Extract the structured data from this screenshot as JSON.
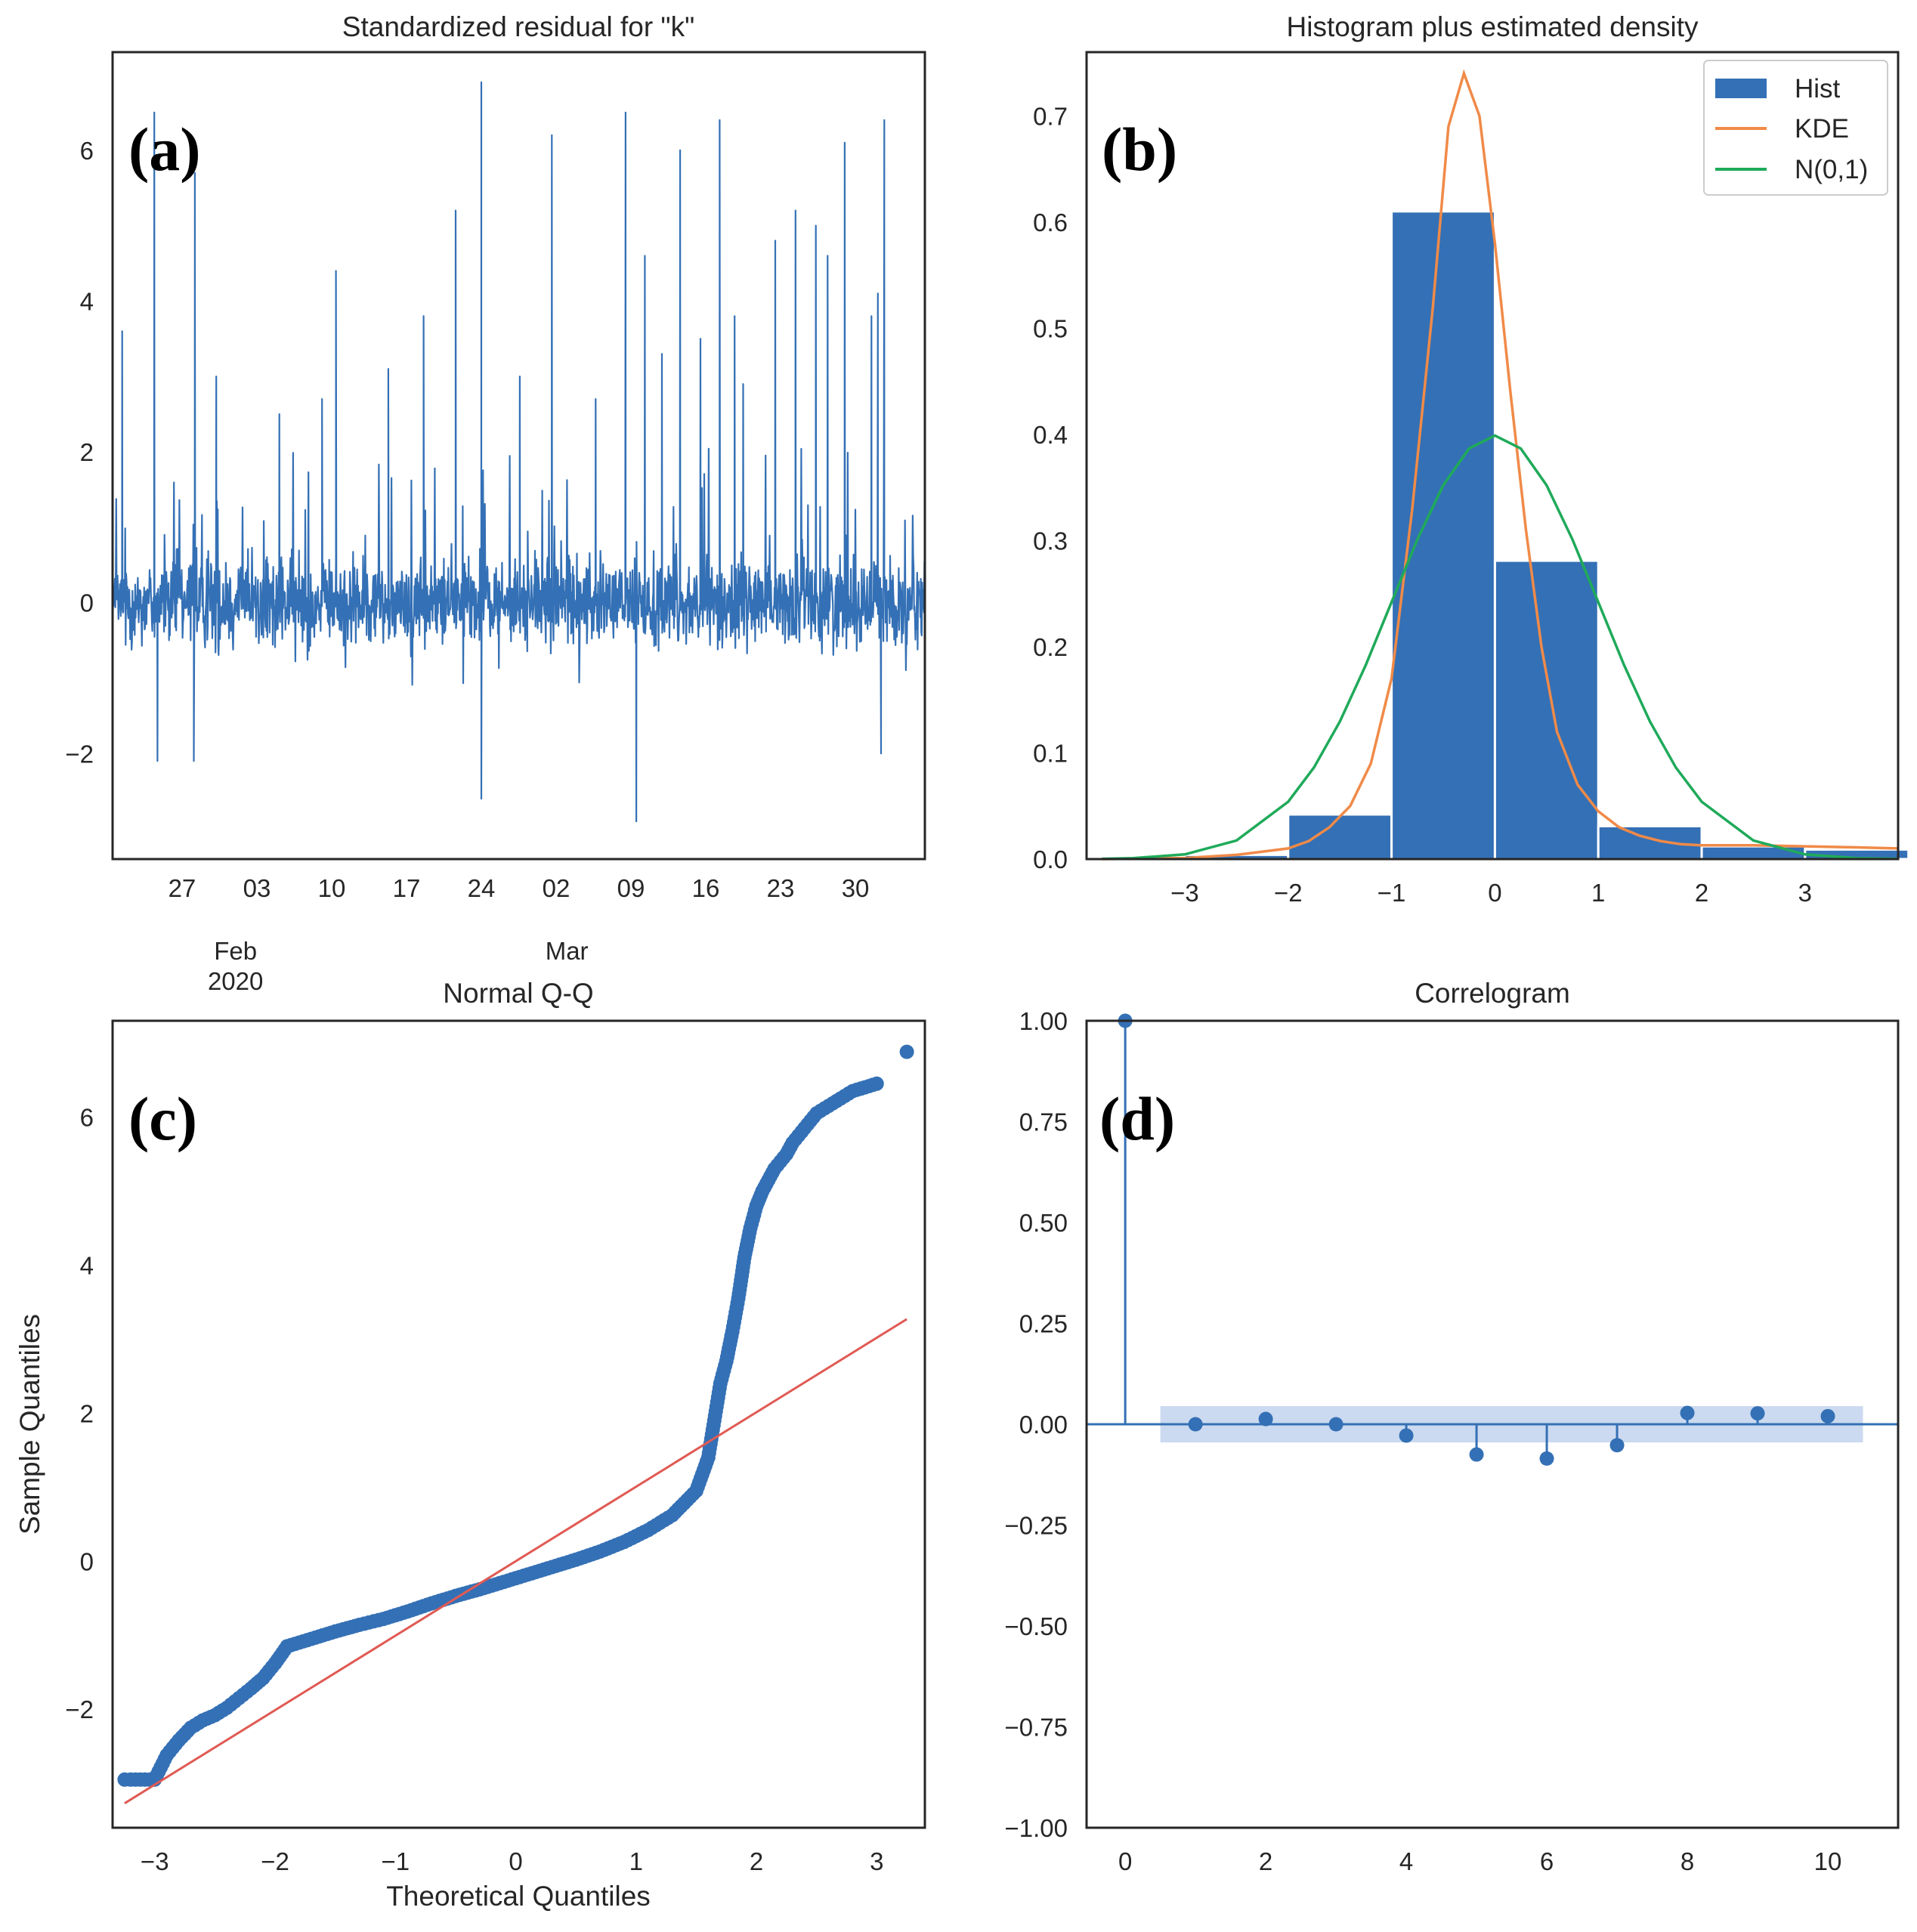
{
  "colors": {
    "series": "#3470b5",
    "kde": "#f08a48",
    "normal": "#1faa5a",
    "qq_line": "#e05a54",
    "band": "#c5d6ee",
    "axis": "#262626"
  },
  "chart_data": [
    {
      "id": "a",
      "type": "line",
      "panel_letter": "(a)",
      "title": "Standardized residual for \"k\"",
      "xlabel": "",
      "ylabel": "",
      "ylim": [
        -3.4,
        7.3
      ],
      "yticks": [
        6,
        4,
        2,
        0,
        -2
      ],
      "yticklabels": [
        "6",
        "4",
        "2",
        "0",
        "−2"
      ],
      "x_range_days": [
        -6.5,
        69.5
      ],
      "xticks": [
        {
          "label": "27",
          "day": 0
        },
        {
          "label": "03",
          "day": 7
        },
        {
          "label": "10",
          "day": 14
        },
        {
          "label": "17",
          "day": 21
        },
        {
          "label": "24",
          "day": 28
        },
        {
          "label": "02",
          "day": 35
        },
        {
          "label": "09",
          "day": 42
        },
        {
          "label": "16",
          "day": 49
        },
        {
          "label": "23",
          "day": 56
        },
        {
          "label": "30",
          "day": 63
        }
      ],
      "month_labels": [
        {
          "text": "Feb",
          "day": 5
        },
        {
          "text": "Mar",
          "day": 36
        },
        {
          "text": "2020",
          "day": 5
        }
      ],
      "spikes": [
        {
          "day": -5.6,
          "value": 3.6
        },
        {
          "day": -2.6,
          "value": 6.5
        },
        {
          "day": -2.3,
          "value": -2.1
        },
        {
          "day": 1.2,
          "value": 5.7
        },
        {
          "day": 1.1,
          "value": -2.1
        },
        {
          "day": 3.2,
          "value": 3.0
        },
        {
          "day": 9.1,
          "value": 2.5
        },
        {
          "day": 13.1,
          "value": 2.7
        },
        {
          "day": 14.4,
          "value": 4.4
        },
        {
          "day": 19.3,
          "value": 3.1
        },
        {
          "day": 22.6,
          "value": 3.8
        },
        {
          "day": 25.6,
          "value": 5.2
        },
        {
          "day": 28.0,
          "value": 6.9
        },
        {
          "day": 28.0,
          "value": -2.6
        },
        {
          "day": 31.6,
          "value": 3.0
        },
        {
          "day": 34.6,
          "value": 6.2
        },
        {
          "day": 38.7,
          "value": 2.7
        },
        {
          "day": 41.5,
          "value": 6.5
        },
        {
          "day": 42.5,
          "value": -2.9
        },
        {
          "day": 43.3,
          "value": 4.6
        },
        {
          "day": 44.9,
          "value": 3.3
        },
        {
          "day": 46.6,
          "value": 6.0
        },
        {
          "day": 48.5,
          "value": 3.5
        },
        {
          "day": 50.3,
          "value": 6.4
        },
        {
          "day": 51.7,
          "value": 3.8
        },
        {
          "day": 52.5,
          "value": 2.9
        },
        {
          "day": 55.5,
          "value": 4.8
        },
        {
          "day": 57.4,
          "value": 5.2
        },
        {
          "day": 59.3,
          "value": 5.0
        },
        {
          "day": 60.4,
          "value": 4.6
        },
        {
          "day": 62.0,
          "value": 6.1
        },
        {
          "day": 64.5,
          "value": 3.8
        },
        {
          "day": 65.1,
          "value": 4.1
        },
        {
          "day": 65.7,
          "value": 6.4
        },
        {
          "day": 65.4,
          "value": -2.0
        }
      ]
    },
    {
      "id": "b",
      "type": "bar",
      "panel_letter": "(b)",
      "title": "Histogram plus estimated density",
      "xlabel": "",
      "ylabel": "",
      "xlim": [
        -3.95,
        3.9
      ],
      "ylim": [
        0,
        0.76
      ],
      "xticks": [
        -3,
        -2,
        -1,
        0,
        1,
        2,
        3
      ],
      "xticklabels": [
        "−3",
        "−2",
        "−1",
        "0",
        "1",
        "2",
        "3"
      ],
      "yticks": [
        0.0,
        0.1,
        0.2,
        0.3,
        0.4,
        0.5,
        0.6,
        0.7
      ],
      "yticklabels": [
        "0.0",
        "0.1",
        "0.2",
        "0.3",
        "0.4",
        "0.5",
        "0.6",
        "0.7"
      ],
      "legend": {
        "placement": "top-right",
        "entries": [
          "Hist",
          "KDE",
          "N(0,1)"
        ]
      },
      "bins": [
        {
          "left": -3.0,
          "right": -2.0,
          "value": 0.004
        },
        {
          "left": -2.0,
          "right": -1.0,
          "value": 0.042
        },
        {
          "left": -1.0,
          "right": 0.0,
          "value": 0.61
        },
        {
          "left": 0.0,
          "right": 1.0,
          "value": 0.281
        },
        {
          "left": 1.0,
          "right": 2.0,
          "value": 0.031
        },
        {
          "left": 2.0,
          "right": 3.0,
          "value": 0.012
        },
        {
          "left": 3.0,
          "right": 4.0,
          "value": 0.009
        }
      ],
      "kde": {
        "x": [
          -3.8,
          -3.0,
          -2.5,
          -2.0,
          -1.8,
          -1.6,
          -1.4,
          -1.2,
          -1.0,
          -0.8,
          -0.6,
          -0.45,
          -0.3,
          -0.15,
          0.0,
          0.15,
          0.3,
          0.45,
          0.6,
          0.8,
          1.0,
          1.2,
          1.4,
          1.6,
          1.8,
          2.0,
          2.5,
          3.0,
          3.5,
          3.9
        ],
        "y": [
          0.0,
          0.001,
          0.004,
          0.01,
          0.017,
          0.03,
          0.05,
          0.09,
          0.17,
          0.33,
          0.52,
          0.69,
          0.74,
          0.7,
          0.58,
          0.44,
          0.31,
          0.2,
          0.12,
          0.07,
          0.045,
          0.03,
          0.022,
          0.017,
          0.014,
          0.013,
          0.013,
          0.012,
          0.011,
          0.01
        ]
      },
      "normal": {
        "x": [
          -3.8,
          -3.5,
          -3.0,
          -2.5,
          -2.0,
          -1.75,
          -1.5,
          -1.25,
          -1.0,
          -0.75,
          -0.5,
          -0.25,
          0.0,
          0.25,
          0.5,
          0.75,
          1.0,
          1.25,
          1.5,
          1.75,
          2.0,
          2.5,
          3.0,
          3.5,
          3.9
        ],
        "y": [
          0.0003,
          0.0009,
          0.0044,
          0.0175,
          0.054,
          0.0863,
          0.1295,
          0.1826,
          0.242,
          0.3011,
          0.3521,
          0.3867,
          0.3989,
          0.3867,
          0.3521,
          0.3011,
          0.242,
          0.1826,
          0.1295,
          0.0863,
          0.054,
          0.0175,
          0.0044,
          0.0009,
          0.0002
        ]
      }
    },
    {
      "id": "c",
      "type": "scatter",
      "panel_letter": "(c)",
      "title": "Normal Q-Q",
      "xlabel": "Theoretical Quantiles",
      "ylabel": "Sample Quantiles",
      "xlim": [
        -3.35,
        3.4
      ],
      "ylim": [
        -3.6,
        7.3
      ],
      "xticks": [
        -3,
        -2,
        -1,
        0,
        1,
        2,
        3
      ],
      "xticklabels": [
        "−3",
        "−2",
        "−1",
        "0",
        "1",
        "2",
        "3"
      ],
      "yticks": [
        6,
        4,
        2,
        0,
        -2
      ],
      "yticklabels": [
        "6",
        "4",
        "2",
        "0",
        "−2"
      ],
      "reference_line": {
        "x": [
          -3.25,
          3.25
        ],
        "y": [
          -3.27,
          3.27
        ]
      },
      "curve": {
        "x": [
          -3.2,
          -3.0,
          -2.9,
          -2.8,
          -2.7,
          -2.6,
          -2.5,
          -2.4,
          -2.3,
          -2.2,
          -2.1,
          -2.0,
          -1.9,
          -1.7,
          -1.5,
          -1.3,
          -1.1,
          -0.9,
          -0.7,
          -0.5,
          -0.3,
          -0.1,
          0.1,
          0.3,
          0.5,
          0.7,
          0.9,
          1.1,
          1.3,
          1.5,
          1.6,
          1.65,
          1.7,
          1.75,
          1.8,
          1.85,
          1.9,
          1.95,
          2.0,
          2.05,
          2.1,
          2.15,
          2.2,
          2.25,
          2.3,
          2.35,
          2.4,
          2.5,
          2.6,
          2.7,
          2.8,
          2.9,
          3.0
        ],
        "y": [
          -2.95,
          -2.95,
          -2.62,
          -2.42,
          -2.25,
          -2.15,
          -2.08,
          -1.98,
          -1.85,
          -1.72,
          -1.58,
          -1.38,
          -1.15,
          -1.05,
          -0.95,
          -0.86,
          -0.78,
          -0.68,
          -0.57,
          -0.47,
          -0.38,
          -0.28,
          -0.18,
          -0.08,
          0.02,
          0.13,
          0.26,
          0.42,
          0.62,
          0.95,
          1.4,
          1.9,
          2.4,
          2.7,
          3.1,
          3.55,
          4.1,
          4.5,
          4.8,
          5.0,
          5.15,
          5.3,
          5.4,
          5.5,
          5.65,
          5.75,
          5.85,
          6.05,
          6.15,
          6.25,
          6.35,
          6.4,
          6.45
        ]
      },
      "isolated_points": [
        {
          "x": -3.25,
          "y": -2.95
        },
        {
          "x": 3.25,
          "y": 6.88
        }
      ]
    },
    {
      "id": "d",
      "type": "scatter",
      "panel_letter": "(d)",
      "title": "Correlogram",
      "xlabel": "",
      "ylabel": "",
      "xlim": [
        -0.55,
        11.0
      ],
      "ylim": [
        -1.0,
        1.0
      ],
      "xticks": [
        0,
        2,
        4,
        6,
        8,
        10
      ],
      "xticklabels": [
        "0",
        "2",
        "4",
        "6",
        "8",
        "10"
      ],
      "yticks": [
        1.0,
        0.75,
        0.5,
        0.25,
        0.0,
        -0.25,
        -0.5,
        -0.75,
        -1.0
      ],
      "yticklabels": [
        "1.00",
        "0.75",
        "0.50",
        "0.25",
        "0.00",
        "−0.25",
        "−0.50",
        "−0.75",
        "−1.00"
      ],
      "confidence_band": {
        "x": [
          0.5,
          10.5
        ],
        "y": [
          -0.045,
          0.045
        ]
      },
      "lags": [
        0,
        1,
        2,
        3,
        4,
        5,
        6,
        7,
        8,
        9,
        10
      ],
      "acf": [
        1.0,
        0.0,
        0.013,
        0.0,
        -0.028,
        -0.075,
        -0.085,
        -0.052,
        0.028,
        0.027,
        0.02
      ]
    }
  ]
}
